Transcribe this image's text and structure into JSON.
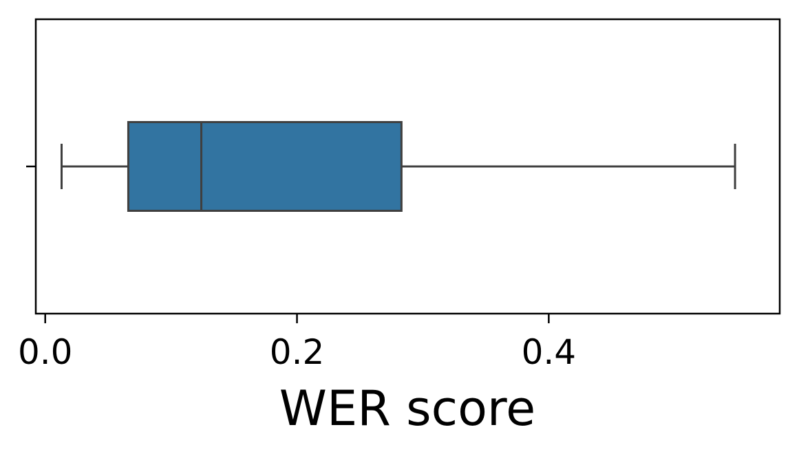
{
  "chart_data": {
    "type": "boxplot",
    "orientation": "horizontal",
    "title": "",
    "xlabel": "WER score",
    "ylabel": "",
    "xlim": [
      -0.0075,
      0.5835
    ],
    "xticks": [
      0.0,
      0.2,
      0.4
    ],
    "xtick_labels": [
      "0.0",
      "0.2",
      "0.4"
    ],
    "grid": false,
    "legend": "none",
    "box": {
      "whisker_low": 0.013,
      "q1": 0.066,
      "median": 0.124,
      "q3": 0.283,
      "whisker_high": 0.548
    },
    "colors": {
      "box_fill": "#3274a1",
      "lines": "#3f3f3f",
      "axes": "#000000"
    }
  }
}
